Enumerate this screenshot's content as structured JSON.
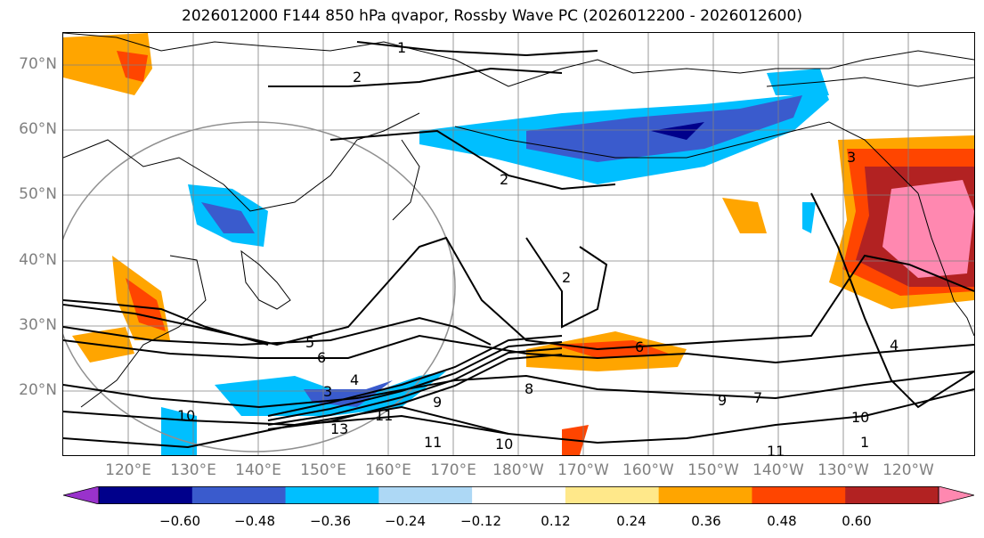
{
  "title": "2026012000 F144 850 hPa qvapor, Rossby Wave PC (2026012200 - 2026012600)",
  "lat_labels": [
    "70°N",
    "60°N",
    "50°N",
    "40°N",
    "30°N",
    "20°N"
  ],
  "lon_labels": [
    "120°E",
    "130°E",
    "140°E",
    "150°E",
    "160°E",
    "170°E",
    "180°W",
    "170°W",
    "160°W",
    "150°W",
    "140°W",
    "130°W",
    "120°W"
  ],
  "contour_labels": [
    "1",
    "2",
    "2",
    "2",
    "5",
    "6",
    "4",
    "3",
    "9",
    "10",
    "11",
    "10",
    "11",
    "13",
    "6",
    "8",
    "7",
    "9",
    "4",
    "3",
    "10",
    "11",
    "1"
  ],
  "colorbar": {
    "colors": [
      "#9932cc",
      "#00008b",
      "#3a5bcd",
      "#00bfff",
      "#add8f5",
      "#ffffff",
      "#ffe88a",
      "#ffa500",
      "#ff4500",
      "#b22222",
      "#ff88b0"
    ],
    "tick_labels": [
      "−0.60",
      "−0.48",
      "−0.36",
      "−0.24",
      "−0.12",
      "0.12",
      "0.24",
      "0.36",
      "0.48",
      "0.60"
    ]
  },
  "colors": {
    "land_outline": "#000000",
    "grid": "#808080",
    "axis_label": "#808080"
  }
}
